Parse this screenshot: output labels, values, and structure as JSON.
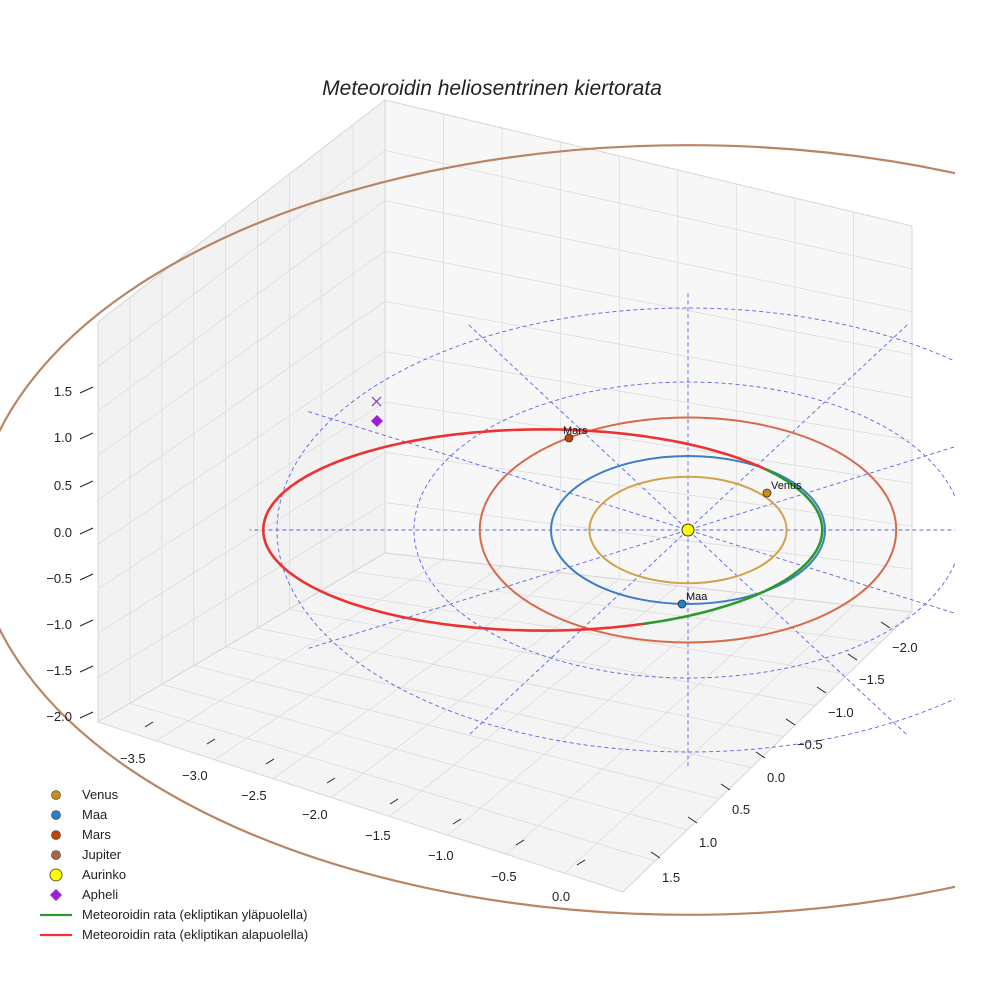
{
  "chart_data": {
    "type": "line",
    "projection": "3d",
    "title": "Meteoroidin heliosentrinen kiertorata",
    "axes": {
      "x_ticks": [
        "−3.5",
        "−3.0",
        "−2.5",
        "−2.0",
        "−1.5",
        "−1.0",
        "−0.5",
        "0.0"
      ],
      "y_ticks": [
        "−2.0",
        "−1.5",
        "−1.0",
        "−0.5",
        "0.0",
        "0.5",
        "1.0",
        "1.5"
      ],
      "z_ticks": [
        "1.5",
        "1.0",
        "0.5",
        "0.0",
        "−0.5",
        "−1.0",
        "−1.5",
        "−2.0"
      ],
      "grid": true
    },
    "reference_rings_au": [
      1.0,
      2.0,
      3.0
    ],
    "series": [
      {
        "name": "Venus",
        "kind": "planet",
        "color": "#c98a1a",
        "orbit_color": "#d4a24c",
        "a_au": 0.72,
        "label": "Venus"
      },
      {
        "name": "Maa",
        "kind": "planet",
        "color": "#2a7fc4",
        "orbit_color": "#3c7fc6",
        "a_au": 1.0,
        "label": "Maa"
      },
      {
        "name": "Mars",
        "kind": "planet",
        "color": "#c0440c",
        "orbit_color": "#d86a4a",
        "a_au": 1.52,
        "label": "Mars"
      },
      {
        "name": "Jupiter",
        "kind": "planet",
        "color": "#a8663c",
        "orbit_color": "#b98565",
        "a_au": 5.2
      },
      {
        "name": "Aurinko",
        "kind": "sun",
        "color": "#ffff00"
      },
      {
        "name": "Apheli",
        "kind": "marker",
        "color": "#9b1fd6"
      },
      {
        "name": "Meteoroidin rata (ekliptikan yläpuolella)",
        "kind": "orbit",
        "color": "#2b9a2b"
      },
      {
        "name": "Meteoroidin rata (ekliptikan alapuolella)",
        "kind": "orbit",
        "color": "#ec3232"
      }
    ],
    "meteoroid_orbit": {
      "aphelion_distance_au": 3.1,
      "perihelion_distance_au": 0.98
    }
  }
}
